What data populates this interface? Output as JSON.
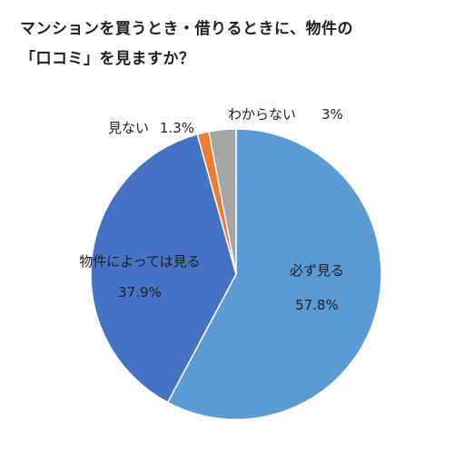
{
  "title_lines": [
    "マンションを買うとき・借りるときに、物件の",
    "「口コミ」を見ますか？"
  ],
  "chart_data": {
    "type": "pie",
    "title": "マンションを買うとき・借りるときに、物件の「口コミ」を見ますか？",
    "start_angle_deg": 0,
    "direction": "clockwise",
    "slices": [
      {
        "label": "必ず見る",
        "value": 57.8,
        "value_label": "57.8%",
        "color": "#5b9bd5"
      },
      {
        "label": "物件によっては見る",
        "value": 37.9,
        "value_label": "37.9%",
        "color": "#4472c4"
      },
      {
        "label": "見ない",
        "value": 1.3,
        "value_label": "1.3%",
        "color": "#ed7d31"
      },
      {
        "label": "わからない",
        "value": 3,
        "value_label": "3%",
        "color": "#a5a5a5"
      }
    ]
  }
}
